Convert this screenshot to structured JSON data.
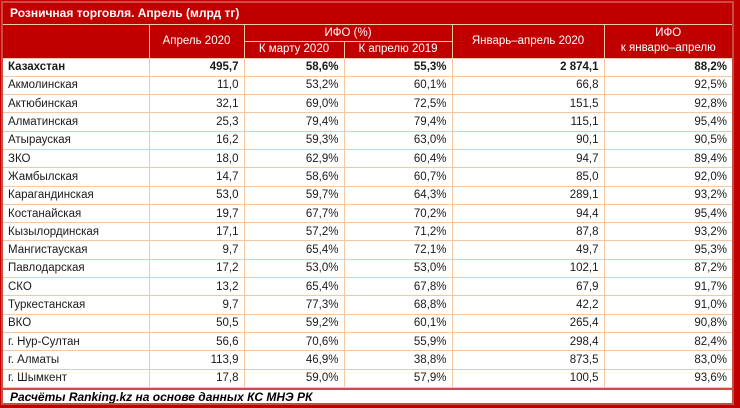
{
  "title": "Розничная торговля. Апрель (млрд тг)",
  "colors": {
    "background_red": "#C00000",
    "frame_red": "#CD4A45",
    "grid_peach": "#F5C8A4",
    "header_text": "#FFFFFF",
    "cell_text": "#1A1A1A"
  },
  "table": {
    "columns": {
      "region": "",
      "april": "Апрель 2020",
      "ifo_group": "ИФО (%)",
      "to_march": "К марту 2020",
      "to_april": "К апрелю 2019",
      "jan_apr": "Январь–апрель 2020",
      "ifo_line1": "ИФО",
      "ifo_line2": "к январю–апрелю"
    },
    "rows": [
      {
        "region": "Казахстан",
        "april": "495,7",
        "to_march": "58,6%",
        "to_april": "55,3%",
        "jan_apr": "2 874,1",
        "ifo": "88,2%",
        "bold": true
      },
      {
        "region": "Акмолинская",
        "april": "11,0",
        "to_march": "53,2%",
        "to_april": "60,1%",
        "jan_apr": "66,8",
        "ifo": "92,5%",
        "bold": false
      },
      {
        "region": "Актюбинская",
        "april": "32,1",
        "to_march": "69,0%",
        "to_april": "72,5%",
        "jan_apr": "151,5",
        "ifo": "92,8%",
        "bold": false
      },
      {
        "region": "Алматинская",
        "april": "25,3",
        "to_march": "79,4%",
        "to_april": "79,4%",
        "jan_apr": "115,1",
        "ifo": "95,4%",
        "bold": false
      },
      {
        "region": "Атырауская",
        "april": "16,2",
        "to_march": "59,3%",
        "to_april": "63,0%",
        "jan_apr": "90,1",
        "ifo": "90,5%",
        "bold": false
      },
      {
        "region": "ЗКО",
        "april": "18,0",
        "to_march": "62,9%",
        "to_april": "60,4%",
        "jan_apr": "94,7",
        "ifo": "89,4%",
        "bold": false
      },
      {
        "region": "Жамбылская",
        "april": "14,7",
        "to_march": "58,6%",
        "to_april": "60,7%",
        "jan_apr": "85,0",
        "ifo": "92,0%",
        "bold": false
      },
      {
        "region": "Карагандинская",
        "april": "53,0",
        "to_march": "59,7%",
        "to_april": "64,3%",
        "jan_apr": "289,1",
        "ifo": "93,2%",
        "bold": false
      },
      {
        "region": "Костанайская",
        "april": "19,7",
        "to_march": "67,7%",
        "to_april": "70,2%",
        "jan_apr": "94,4",
        "ifo": "95,4%",
        "bold": false
      },
      {
        "region": "Кызылординская",
        "april": "17,1",
        "to_march": "57,2%",
        "to_april": "71,2%",
        "jan_apr": "87,8",
        "ifo": "93,2%",
        "bold": false
      },
      {
        "region": "Мангистауская",
        "april": "9,7",
        "to_march": "65,4%",
        "to_april": "72,1%",
        "jan_apr": "49,7",
        "ifo": "95,3%",
        "bold": false
      },
      {
        "region": "Павлодарская",
        "april": "17,2",
        "to_march": "53,0%",
        "to_april": "53,0%",
        "jan_apr": "102,1",
        "ifo": "87,2%",
        "bold": false
      },
      {
        "region": "СКО",
        "april": "13,2",
        "to_march": "65,4%",
        "to_april": "67,8%",
        "jan_apr": "67,9",
        "ifo": "91,7%",
        "bold": false
      },
      {
        "region": "Туркестанская",
        "april": "9,7",
        "to_march": "77,3%",
        "to_april": "68,8%",
        "jan_apr": "42,2",
        "ifo": "91,0%",
        "bold": false
      },
      {
        "region": "ВКО",
        "april": "50,5",
        "to_march": "59,2%",
        "to_april": "60,1%",
        "jan_apr": "265,4",
        "ifo": "90,8%",
        "bold": false
      },
      {
        "region": "г. Нур-Султан",
        "april": "56,6",
        "to_march": "70,6%",
        "to_april": "55,9%",
        "jan_apr": "298,4",
        "ifo": "82,4%",
        "bold": false
      },
      {
        "region": "г. Алматы",
        "april": "113,9",
        "to_march": "46,9%",
        "to_april": "38,8%",
        "jan_apr": "873,5",
        "ifo": "83,0%",
        "bold": false
      },
      {
        "region": "г. Шымкент",
        "april": "17,8",
        "to_march": "59,0%",
        "to_april": "57,9%",
        "jan_apr": "100,5",
        "ifo": "93,6%",
        "bold": false
      }
    ]
  },
  "footer": {
    "text": "Расчёты Ranking.kz на основе данных КС МНЭ РК"
  }
}
